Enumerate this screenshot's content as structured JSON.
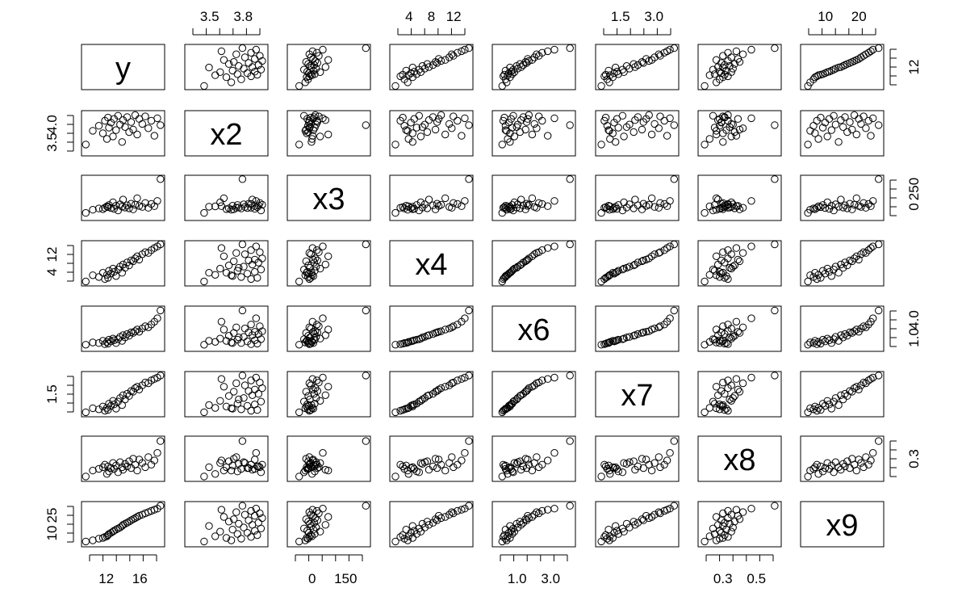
{
  "chart_data": {
    "type": "scatter",
    "variables": [
      "y",
      "x2",
      "x3",
      "x4",
      "x6",
      "x7",
      "x8",
      "x9"
    ],
    "ranges": {
      "y": [
        11.2,
        18.8
      ],
      "x2": [
        3.39,
        4.01
      ],
      "x3": [
        0,
        285
      ],
      "x4": [
        3.6,
        13.0
      ],
      "x6": [
        0.85,
        4.3
      ],
      "x7": [
        1.1,
        3.85
      ],
      "x8": [
        0.22,
        0.68
      ],
      "x9": [
        6.5,
        27.0
      ]
    },
    "axis_ticks": {
      "top": [
        {
          "var": "x2",
          "labels": [
            "3.5",
            "3.8"
          ]
        },
        {
          "var": "x4",
          "labels": [
            "4",
            "8",
            "12"
          ]
        },
        {
          "var": "x7",
          "labels": [
            "1.5",
            "3.0"
          ]
        },
        {
          "var": "x9",
          "labels": [
            "10",
            "20"
          ]
        }
      ],
      "bottom": [
        {
          "var": "y",
          "labels": [
            "12",
            "16"
          ]
        },
        {
          "var": "x3",
          "labels": [
            "0",
            "150"
          ]
        },
        {
          "var": "x6",
          "labels": [
            "1.0",
            "3.0"
          ]
        },
        {
          "var": "x8",
          "labels": [
            "0.3",
            "0.5"
          ]
        }
      ],
      "left": [
        {
          "var": "x2",
          "labels": [
            "3.5",
            "4.0"
          ]
        },
        {
          "var": "x4",
          "labels": [
            "4",
            "12"
          ]
        },
        {
          "var": "x7",
          "labels": [
            "1.5"
          ]
        },
        {
          "var": "x9",
          "labels": [
            "10",
            "25"
          ]
        }
      ],
      "right": [
        {
          "var": "y",
          "labels": [
            "12"
          ]
        },
        {
          "var": "x3",
          "labels": [
            "0",
            "250"
          ]
        },
        {
          "var": "x6",
          "labels": [
            "1.0",
            "4.0"
          ]
        },
        {
          "var": "x8",
          "labels": [
            "0.3"
          ]
        }
      ]
    },
    "observations": [
      {
        "y": 11.3,
        "x2": 3.52,
        "x3": 32,
        "x4": 3.9,
        "x6": 1.15,
        "x7": 1.19,
        "x8": 0.24,
        "x9": 7.6
      },
      {
        "y": 12.0,
        "x2": 3.74,
        "x3": 55,
        "x4": 5.4,
        "x6": 1.35,
        "x7": 1.48,
        "x8": 0.31,
        "x9": 8.2
      },
      {
        "y": 12.6,
        "x2": 3.82,
        "x3": 65,
        "x4": 5.0,
        "x6": 1.3,
        "x7": 1.4,
        "x8": 0.33,
        "x9": 9.1
      },
      {
        "y": 13.0,
        "x2": 3.7,
        "x3": 60,
        "x4": 6.0,
        "x6": 1.5,
        "x7": 1.6,
        "x8": 0.35,
        "x9": 9.5
      },
      {
        "y": 13.2,
        "x2": 3.9,
        "x3": 70,
        "x4": 4.5,
        "x6": 1.2,
        "x7": 1.3,
        "x8": 0.38,
        "x9": 10.0
      },
      {
        "y": 13.4,
        "x2": 3.61,
        "x3": 80,
        "x4": 5.5,
        "x6": 1.4,
        "x7": 1.5,
        "x8": 0.27,
        "x9": 10.4
      },
      {
        "y": 13.5,
        "x2": 3.95,
        "x3": 75,
        "x4": 4.8,
        "x6": 1.25,
        "x7": 1.35,
        "x8": 0.36,
        "x9": 11.0
      },
      {
        "y": 13.6,
        "x2": 3.79,
        "x3": 90,
        "x4": 6.5,
        "x6": 1.6,
        "x7": 1.8,
        "x8": 0.3,
        "x9": 11.6
      },
      {
        "y": 13.8,
        "x2": 3.87,
        "x3": 68,
        "x4": 5.8,
        "x6": 1.45,
        "x7": 1.65,
        "x8": 0.34,
        "x9": 12.2
      },
      {
        "y": 14.0,
        "x2": 3.65,
        "x3": 110,
        "x4": 7.0,
        "x6": 1.7,
        "x7": 2.0,
        "x8": 0.4,
        "x9": 12.8
      },
      {
        "y": 14.1,
        "x2": 3.93,
        "x3": 62,
        "x4": 6.2,
        "x6": 1.55,
        "x7": 1.75,
        "x8": 0.33,
        "x9": 13.3
      },
      {
        "y": 14.3,
        "x2": 3.75,
        "x3": 85,
        "x4": 5.2,
        "x6": 1.3,
        "x7": 1.45,
        "x8": 0.37,
        "x9": 13.9
      },
      {
        "y": 14.5,
        "x2": 3.98,
        "x3": 50,
        "x4": 6.8,
        "x6": 1.65,
        "x7": 1.95,
        "x8": 0.29,
        "x9": 14.5
      },
      {
        "y": 14.7,
        "x2": 3.84,
        "x3": 95,
        "x4": 7.5,
        "x6": 1.85,
        "x7": 2.2,
        "x8": 0.41,
        "x9": 15.0
      },
      {
        "y": 14.9,
        "x2": 3.56,
        "x3": 78,
        "x4": 6.0,
        "x6": 1.5,
        "x7": 1.7,
        "x8": 0.35,
        "x9": 15.8
      },
      {
        "y": 15.0,
        "x2": 3.91,
        "x3": 130,
        "x4": 8.0,
        "x6": 2.0,
        "x7": 2.4,
        "x8": 0.32,
        "x9": 16.4
      },
      {
        "y": 15.2,
        "x2": 3.8,
        "x3": 72,
        "x4": 7.2,
        "x6": 1.8,
        "x7": 2.1,
        "x8": 0.39,
        "x9": 17.0
      },
      {
        "y": 15.4,
        "x2": 3.96,
        "x3": 88,
        "x4": 8.5,
        "x6": 2.1,
        "x7": 2.5,
        "x8": 0.36,
        "x9": 17.5
      },
      {
        "y": 15.6,
        "x2": 3.72,
        "x3": 66,
        "x4": 7.8,
        "x6": 1.95,
        "x7": 2.35,
        "x8": 0.42,
        "x9": 18.1
      },
      {
        "y": 15.8,
        "x2": 3.88,
        "x3": 100,
        "x4": 9.0,
        "x6": 2.25,
        "x7": 2.7,
        "x8": 0.34,
        "x9": 18.8
      },
      {
        "y": 16.0,
        "x2": 3.76,
        "x3": 58,
        "x4": 8.8,
        "x6": 2.2,
        "x7": 2.65,
        "x8": 0.45,
        "x9": 19.4
      },
      {
        "y": 16.2,
        "x2": 3.99,
        "x3": 92,
        "x4": 9.5,
        "x6": 2.35,
        "x7": 2.9,
        "x8": 0.38,
        "x9": 20.0
      },
      {
        "y": 16.4,
        "x2": 3.68,
        "x3": 140,
        "x4": 10.0,
        "x6": 2.5,
        "x7": 3.0,
        "x8": 0.31,
        "x9": 20.6
      },
      {
        "y": 16.6,
        "x2": 3.93,
        "x3": 84,
        "x4": 9.2,
        "x6": 2.3,
        "x7": 2.8,
        "x8": 0.44,
        "x9": 21.2
      },
      {
        "y": 16.9,
        "x2": 3.85,
        "x3": 76,
        "x4": 10.5,
        "x6": 2.6,
        "x7": 3.1,
        "x8": 0.4,
        "x9": 21.8
      },
      {
        "y": 17.2,
        "x2": 3.97,
        "x3": 105,
        "x4": 11.0,
        "x6": 2.8,
        "x7": 3.3,
        "x8": 0.35,
        "x9": 22.5
      },
      {
        "y": 17.5,
        "x2": 3.78,
        "x3": 70,
        "x4": 10.8,
        "x6": 2.7,
        "x7": 3.25,
        "x8": 0.47,
        "x9": 23.1
      },
      {
        "y": 17.8,
        "x2": 3.9,
        "x3": 98,
        "x4": 11.5,
        "x6": 2.95,
        "x7": 3.45,
        "x8": 0.38,
        "x9": 23.8
      },
      {
        "y": 18.1,
        "x2": 3.66,
        "x3": 82,
        "x4": 12.0,
        "x6": 3.2,
        "x7": 3.55,
        "x8": 0.43,
        "x9": 24.4
      },
      {
        "y": 18.4,
        "x2": 3.94,
        "x3": 120,
        "x4": 12.4,
        "x6": 3.5,
        "x7": 3.65,
        "x8": 0.52,
        "x9": 25.0
      },
      {
        "y": 18.7,
        "x2": 3.83,
        "x3": 280,
        "x4": 12.9,
        "x6": 4.2,
        "x7": 3.8,
        "x8": 0.66,
        "x9": 26.5
      }
    ]
  }
}
